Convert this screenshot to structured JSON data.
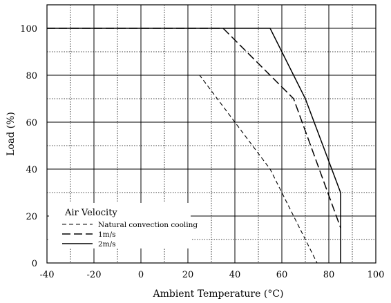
{
  "chart_data": {
    "type": "line",
    "title": "",
    "xlabel": "Ambient Temperature (°C)",
    "ylabel": "Load (%)",
    "xlim": [
      -40,
      100
    ],
    "ylim": [
      0,
      110
    ],
    "x_ticks": [
      -40,
      -20,
      0,
      20,
      40,
      60,
      80,
      100
    ],
    "y_ticks": [
      0,
      20,
      40,
      60,
      80,
      100
    ],
    "x_grid_step": 10,
    "y_grid_step": 10,
    "grid": true,
    "legend": {
      "title": "Air Velocity",
      "placement": "bottom-left"
    },
    "series": [
      {
        "name": "Natural convection cooling",
        "style": "short-dash",
        "points": [
          [
            -40,
            80
          ],
          [
            25,
            80
          ],
          [
            55,
            40
          ],
          [
            75,
            0
          ]
        ]
      },
      {
        "name": "1m/s",
        "style": "long-dash",
        "points": [
          [
            -40,
            100
          ],
          [
            35,
            100
          ],
          [
            65,
            70
          ],
          [
            85,
            15
          ]
        ]
      },
      {
        "name": "2m/s",
        "style": "solid",
        "points": [
          [
            -40,
            100
          ],
          [
            55,
            100
          ],
          [
            70,
            70
          ],
          [
            85,
            30
          ],
          [
            85,
            0
          ]
        ]
      }
    ]
  }
}
